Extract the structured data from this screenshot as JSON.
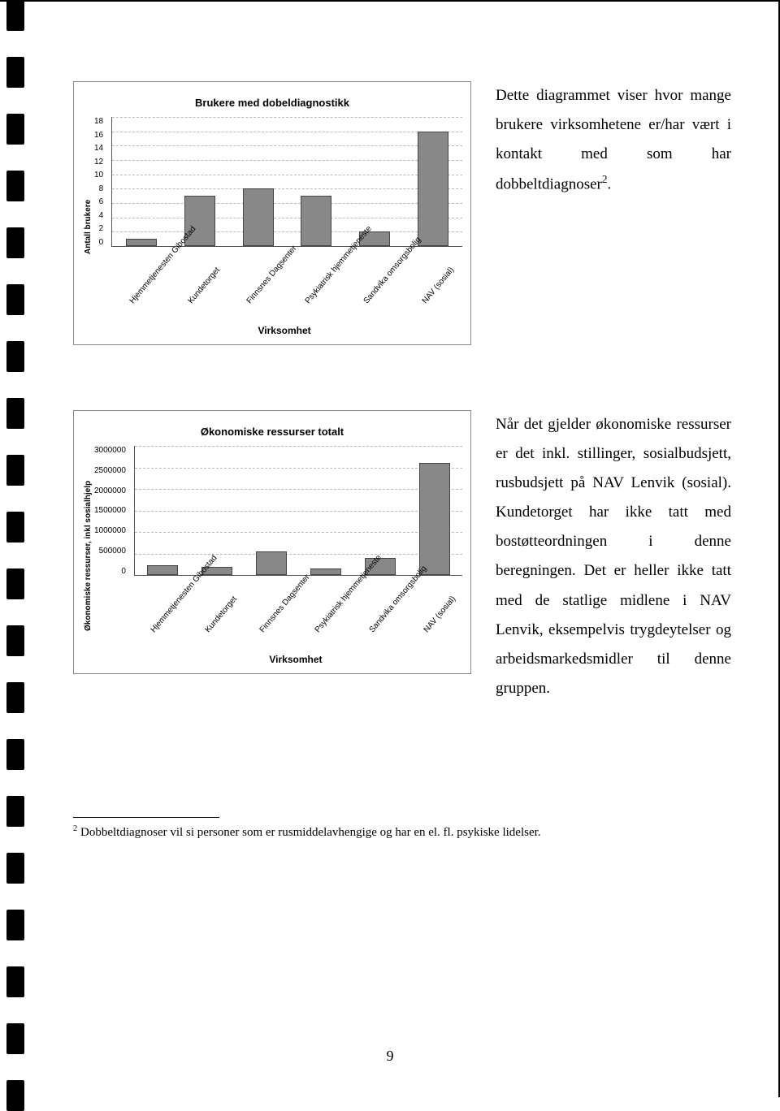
{
  "chart1": {
    "title": "Brukere med dobeldiagnostikk",
    "y_label": "Antall brukere",
    "x_label": "Virksomhet",
    "ylim": [
      0,
      18
    ],
    "ytick_step": 2,
    "yticks": [
      "18",
      "16",
      "14",
      "12",
      "10",
      "8",
      "6",
      "4",
      "2",
      "0"
    ],
    "categories": [
      "Hjemmetjenesten Gibostad",
      "Kundetorget",
      "Finnsnes Dagsenter",
      "Psykiatrisk hjemmetjeneste",
      "Sandvika omsorgsbolig",
      "NAV (sosial)"
    ],
    "values": [
      1,
      7,
      8,
      7,
      2,
      16
    ],
    "bar_color": "#888888",
    "grid_color": "#bbbbbb",
    "background_color": "#ffffff",
    "title_fontsize": 13,
    "label_fontsize": 10
  },
  "chart2": {
    "title": "Økonomiske ressurser totalt",
    "y_label": "Økonomiske ressurser, inkl sosialhjelp",
    "x_label": "Virksomhet",
    "ylim": [
      0,
      3000000
    ],
    "ytick_step": 500000,
    "yticks": [
      "3000000",
      "2500000",
      "2000000",
      "1500000",
      "1000000",
      "500000",
      "0"
    ],
    "categories": [
      "Hjemmetjenesten Gibostad",
      "Kundetorget",
      "Finnsnes Dagsenter",
      "Psykiatrisk hjemmetjeneste",
      "Sandvika omsorgsbolig",
      "NAV (sosial)"
    ],
    "values": [
      220000,
      180000,
      550000,
      150000,
      400000,
      2600000
    ],
    "bar_color": "#888888",
    "grid_color": "#bbbbbb",
    "background_color": "#ffffff",
    "title_fontsize": 13,
    "label_fontsize": 10
  },
  "desc1": "Dette diagrammet viser hvor mange brukere virksomhetene er/har vært i kontakt med som har dobbeltdiagnoser",
  "desc1_footref": "2",
  "desc2": "Når det gjelder økonomiske ressurser er det inkl. stillinger, sosialbudsjett, rusbudsjett på NAV Lenvik (sosial).\nKundetorget har ikke tatt med bostøtteordningen i denne beregningen.\nDet er heller ikke tatt med de statlige midlene i NAV Lenvik, eksempelvis trygdeytelser og arbeidsmarkedsmidler til denne gruppen.",
  "footnote_num": "2",
  "footnote_text": "Dobbeltdiagnoser vil si personer som er rusmiddelavhengige og har en el. fl. psykiske lidelser.",
  "page_number": "9",
  "binding_mark_count": 20
}
